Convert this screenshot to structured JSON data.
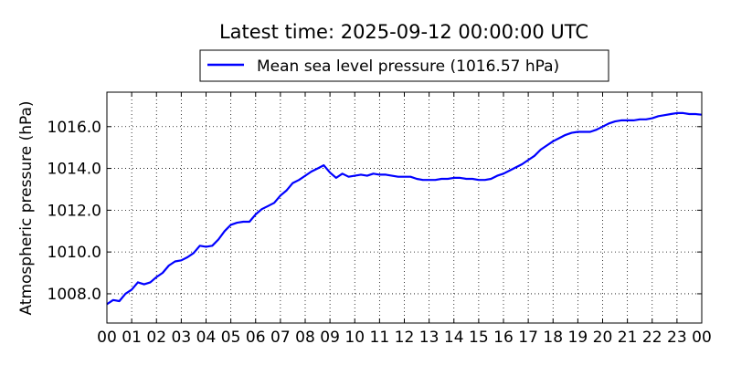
{
  "chart_data": {
    "type": "line",
    "title": "Latest time: 2025-09-12 00:00:00 UTC",
    "ylabel": "Atmospheric pressure (hPa)",
    "xlabel": "",
    "legend_placement": "top-center",
    "grid": true,
    "grid_style": "dotted",
    "xlim": [
      0,
      24
    ],
    "ylim": [
      1006.6,
      1017.65
    ],
    "x_tick_labels": [
      "00",
      "01",
      "02",
      "03",
      "04",
      "05",
      "06",
      "07",
      "08",
      "09",
      "10",
      "11",
      "12",
      "13",
      "14",
      "15",
      "16",
      "17",
      "18",
      "19",
      "20",
      "21",
      "22",
      "23",
      "00"
    ],
    "y_tick_labels": [
      "1008.0",
      "1010.0",
      "1012.0",
      "1014.0",
      "1016.0"
    ],
    "y_tick_values": [
      1008,
      1010,
      1012,
      1014,
      1016
    ],
    "series": [
      {
        "name": "Mean sea level pressure (1016.57 hPa)",
        "color": "#0000ff",
        "x": [
          0,
          0.25,
          0.5,
          0.75,
          1,
          1.25,
          1.5,
          1.75,
          2,
          2.25,
          2.5,
          2.75,
          3,
          3.25,
          3.5,
          3.75,
          4,
          4.25,
          4.5,
          4.75,
          5,
          5.25,
          5.5,
          5.75,
          6,
          6.25,
          6.5,
          6.75,
          7,
          7.25,
          7.5,
          7.75,
          8,
          8.25,
          8.5,
          8.75,
          9,
          9.25,
          9.5,
          9.75,
          10,
          10.25,
          10.5,
          10.75,
          11,
          11.25,
          11.5,
          11.75,
          12,
          12.25,
          12.5,
          12.75,
          13,
          13.25,
          13.5,
          13.75,
          14,
          14.25,
          14.5,
          14.75,
          15,
          15.25,
          15.5,
          15.75,
          16,
          16.25,
          16.5,
          16.75,
          17,
          17.25,
          17.5,
          17.75,
          18,
          18.25,
          18.5,
          18.75,
          19,
          19.25,
          19.5,
          19.75,
          20,
          20.25,
          20.5,
          20.75,
          21,
          21.25,
          21.5,
          21.75,
          22,
          22.25,
          22.5,
          22.75,
          23,
          23.25,
          23.5,
          23.75,
          24
        ],
        "values": [
          1007.5,
          1007.7,
          1007.65,
          1008.0,
          1008.2,
          1008.55,
          1008.45,
          1008.55,
          1008.8,
          1009.0,
          1009.35,
          1009.55,
          1009.6,
          1009.75,
          1009.95,
          1010.3,
          1010.25,
          1010.3,
          1010.6,
          1011.0,
          1011.3,
          1011.4,
          1011.45,
          1011.45,
          1011.8,
          1012.05,
          1012.2,
          1012.35,
          1012.7,
          1012.95,
          1013.3,
          1013.45,
          1013.65,
          1013.85,
          1014.0,
          1014.15,
          1013.8,
          1013.55,
          1013.75,
          1013.6,
          1013.65,
          1013.7,
          1013.65,
          1013.75,
          1013.7,
          1013.7,
          1013.65,
          1013.6,
          1013.6,
          1013.6,
          1013.5,
          1013.45,
          1013.45,
          1013.45,
          1013.5,
          1013.5,
          1013.55,
          1013.55,
          1013.5,
          1013.5,
          1013.45,
          1013.45,
          1013.5,
          1013.65,
          1013.75,
          1013.9,
          1014.05,
          1014.2,
          1014.4,
          1014.6,
          1014.9,
          1015.1,
          1015.3,
          1015.45,
          1015.6,
          1015.7,
          1015.75,
          1015.75,
          1015.75,
          1015.85,
          1016.0,
          1016.15,
          1016.25,
          1016.3,
          1016.3,
          1016.3,
          1016.35,
          1016.35,
          1016.4,
          1016.5,
          1016.55,
          1016.6,
          1016.65,
          1016.65,
          1016.6,
          1016.6,
          1016.57
        ]
      }
    ]
  }
}
